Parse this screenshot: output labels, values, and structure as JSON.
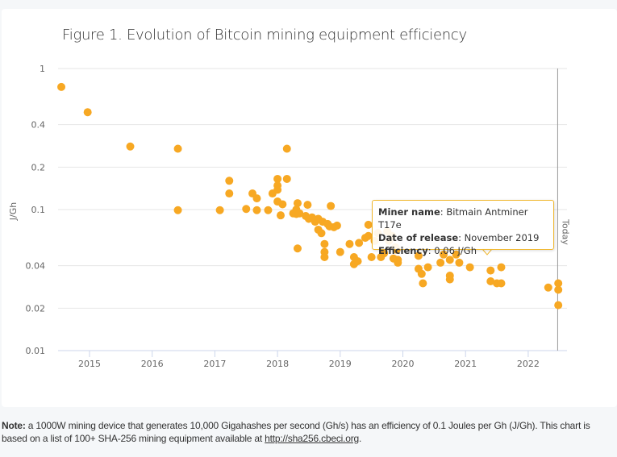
{
  "chart_data": {
    "type": "scatter",
    "title": "Figure 1. Evolution of Bitcoin mining equipment efficiency",
    "xlabel": "",
    "ylabel": "J/Gh",
    "yscale": "log",
    "ylim": [
      0.01,
      1
    ],
    "xlim": [
      2014.5,
      2022.5
    ],
    "y_ticks": [
      "1",
      "0.4",
      "0.2",
      "0.1",
      "0.04",
      "0.02",
      "0.01"
    ],
    "y_tick_values": [
      1,
      0.4,
      0.2,
      0.1,
      0.04,
      0.02,
      0.01
    ],
    "x_ticks": [
      "2015",
      "2016",
      "2017",
      "2018",
      "2019",
      "2020",
      "2021",
      "2022"
    ],
    "x_tick_values": [
      2015,
      2016,
      2017,
      2018,
      2019,
      2020,
      2021,
      2022
    ],
    "grid": true,
    "marker_color": "#f7a823",
    "today_line": {
      "x": 2022.47,
      "label": "Today"
    },
    "points": [
      [
        2014.55,
        0.74
      ],
      [
        2014.97,
        0.49
      ],
      [
        2015.65,
        0.28
      ],
      [
        2016.41,
        0.27
      ],
      [
        2016.41,
        0.099
      ],
      [
        2017.08,
        0.099
      ],
      [
        2017.23,
        0.16
      ],
      [
        2017.23,
        0.13
      ],
      [
        2017.5,
        0.101
      ],
      [
        2017.6,
        0.13
      ],
      [
        2017.67,
        0.12
      ],
      [
        2017.67,
        0.099
      ],
      [
        2017.85,
        0.099
      ],
      [
        2017.92,
        0.13
      ],
      [
        2018.0,
        0.165
      ],
      [
        2018.0,
        0.148
      ],
      [
        2018.0,
        0.138
      ],
      [
        2018.0,
        0.114
      ],
      [
        2018.05,
        0.091
      ],
      [
        2018.08,
        0.109
      ],
      [
        2018.15,
        0.27
      ],
      [
        2018.15,
        0.165
      ],
      [
        2018.25,
        0.094
      ],
      [
        2018.3,
        0.093
      ],
      [
        2018.3,
        0.1
      ],
      [
        2018.32,
        0.111
      ],
      [
        2018.32,
        0.053
      ],
      [
        2018.35,
        0.094
      ],
      [
        2018.45,
        0.09
      ],
      [
        2018.48,
        0.108
      ],
      [
        2018.5,
        0.086
      ],
      [
        2018.55,
        0.088
      ],
      [
        2018.6,
        0.082
      ],
      [
        2018.65,
        0.086
      ],
      [
        2018.65,
        0.072
      ],
      [
        2018.7,
        0.068
      ],
      [
        2018.72,
        0.082
      ],
      [
        2018.75,
        0.057
      ],
      [
        2018.75,
        0.05
      ],
      [
        2018.75,
        0.046
      ],
      [
        2018.8,
        0.079
      ],
      [
        2018.83,
        0.076
      ],
      [
        2018.85,
        0.106
      ],
      [
        2018.9,
        0.075
      ],
      [
        2018.95,
        0.077
      ],
      [
        2019.0,
        0.05
      ],
      [
        2019.15,
        0.057
      ],
      [
        2019.22,
        0.046
      ],
      [
        2019.22,
        0.041
      ],
      [
        2019.28,
        0.043
      ],
      [
        2019.3,
        0.058
      ],
      [
        2019.4,
        0.063
      ],
      [
        2019.45,
        0.078
      ],
      [
        2019.45,
        0.065
      ],
      [
        2019.5,
        0.046
      ],
      [
        2019.55,
        0.06
      ],
      [
        2019.6,
        0.068
      ],
      [
        2019.65,
        0.046
      ],
      [
        2019.7,
        0.049
      ],
      [
        2019.75,
        0.07
      ],
      [
        2019.78,
        0.06
      ],
      [
        2019.83,
        0.065
      ],
      [
        2019.85,
        0.045
      ],
      [
        2019.88,
        0.054
      ],
      [
        2019.9,
        0.052
      ],
      [
        2019.92,
        0.042
      ],
      [
        2019.92,
        0.044
      ],
      [
        2020.25,
        0.047
      ],
      [
        2020.25,
        0.038
      ],
      [
        2020.3,
        0.035
      ],
      [
        2020.32,
        0.03
      ],
      [
        2020.4,
        0.039
      ],
      [
        2020.6,
        0.042
      ],
      [
        2020.65,
        0.048
      ],
      [
        2020.75,
        0.044
      ],
      [
        2020.75,
        0.034
      ],
      [
        2020.75,
        0.032
      ],
      [
        2020.85,
        0.048
      ],
      [
        2020.9,
        0.042
      ],
      [
        2021.07,
        0.039
      ],
      [
        2021.4,
        0.037
      ],
      [
        2021.4,
        0.031
      ],
      [
        2021.5,
        0.03
      ],
      [
        2021.57,
        0.03
      ],
      [
        2021.57,
        0.039
      ],
      [
        2022.32,
        0.028
      ],
      [
        2022.48,
        0.03
      ],
      [
        2022.48,
        0.027
      ],
      [
        2022.48,
        0.021
      ]
    ]
  },
  "tooltip": {
    "fields": [
      {
        "label": "Miner name",
        "value": "Bitmain Antminer T17e"
      },
      {
        "label": "Date of release",
        "value": "November 2019"
      },
      {
        "label": "Efficiency",
        "value": "0.06 J/Gh"
      }
    ]
  },
  "note": {
    "prefix": "Note:",
    "text": " a 1000W mining device that generates 10,000 Gigahashes per second (Gh/s) has an efficiency of 0.1 Joules per Gh (J/Gh). This chart is based on a list of 100+ SHA-256 mining equipment available at ",
    "link": "http://sha256.cbeci.org",
    "suffix": "."
  }
}
